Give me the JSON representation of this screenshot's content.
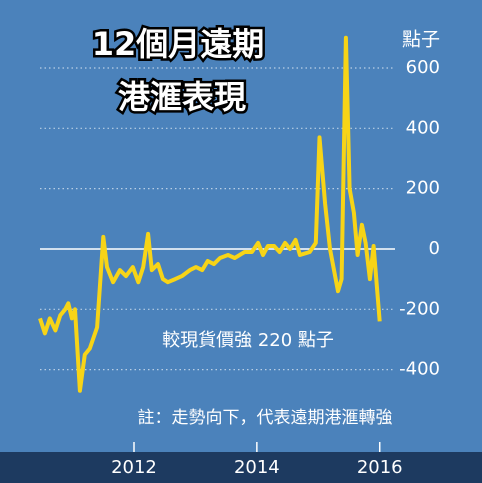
{
  "chart_data": {
    "type": "line",
    "title_lines": [
      "12個月遠期",
      "港滙表現"
    ],
    "unit_label": "點子",
    "annotations": [
      "較現貨價強 220 點子",
      "註：走勢向下，代表遠期港滙轉強"
    ],
    "x": [
      2010.47,
      2010.55,
      2010.63,
      2010.72,
      2010.8,
      2010.88,
      2010.93,
      2010.99,
      2011.04,
      2011.12,
      2011.2,
      2011.28,
      2011.4,
      2011.5,
      2011.56,
      2011.66,
      2011.77,
      2011.87,
      2011.98,
      2012.07,
      2012.15,
      2012.23,
      2012.29,
      2012.39,
      2012.47,
      2012.55,
      2012.67,
      2012.78,
      2012.91,
      2013.01,
      2013.11,
      2013.2,
      2013.3,
      2013.4,
      2013.53,
      2013.64,
      2013.8,
      2013.92,
      2014.02,
      2014.1,
      2014.18,
      2014.28,
      2014.37,
      2014.46,
      2014.54,
      2014.63,
      2014.7,
      2014.86,
      2014.96,
      2015.02,
      2015.11,
      2015.19,
      2015.32,
      2015.38,
      2015.45,
      2015.51,
      2015.58,
      2015.64,
      2015.71,
      2015.77,
      2015.84,
      2015.9,
      2016.0
    ],
    "series": [
      {
        "color": "#f7d417",
        "values": [
          -230,
          -280,
          -230,
          -270,
          -220,
          -200,
          -180,
          -230,
          -200,
          -470,
          -350,
          -330,
          -260,
          40,
          -60,
          -110,
          -70,
          -90,
          -60,
          -110,
          -60,
          50,
          -70,
          -50,
          -100,
          -110,
          -100,
          -90,
          -70,
          -60,
          -70,
          -40,
          -50,
          -30,
          -20,
          -30,
          -10,
          -10,
          20,
          -20,
          10,
          10,
          -10,
          20,
          0,
          30,
          -20,
          -10,
          20,
          370,
          150,
          0,
          -140,
          -100,
          700,
          200,
          120,
          -20,
          80,
          20,
          -100,
          10,
          -240
        ]
      }
    ],
    "xlim": [
      2010.47,
      2016.33
    ],
    "xticks": [
      2012,
      2014,
      2016
    ],
    "ylim": [
      -673,
      759
    ],
    "yticks": [
      600,
      400,
      200,
      0,
      -200,
      -400
    ],
    "grid": true
  }
}
